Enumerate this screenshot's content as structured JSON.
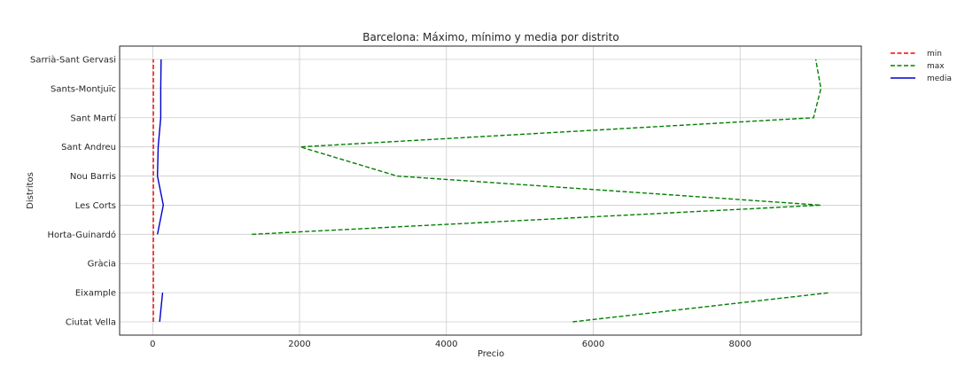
{
  "chart_data": {
    "type": "line",
    "title": "Barcelona: Máximo, mínimo y media por distrito",
    "xlabel": "Precio",
    "ylabel": "Distritos",
    "xlim": [
      -450,
      9650
    ],
    "xticks": [
      0,
      2000,
      4000,
      6000,
      8000
    ],
    "categories": [
      "Ciutat Vella",
      "Eixample",
      "Gràcia",
      "Horta-Guinardó",
      "Les Corts",
      "Nou Barris",
      "Sant Andreu",
      "Sant Martí",
      "Sants-Montjuïc",
      "Sarrià-Sant Gervasi"
    ],
    "grid": true,
    "legend_position": "outside-top-right",
    "series": [
      {
        "name": "min",
        "color": "#ff0000",
        "style": "dashed",
        "values": [
          10,
          10,
          10,
          10,
          10,
          10,
          10,
          10,
          10,
          10
        ]
      },
      {
        "name": "max",
        "color": "#008000",
        "style": "dashed",
        "values": [
          5720,
          9220,
          null,
          1350,
          9100,
          3330,
          2010,
          9000,
          9100,
          9030
        ]
      },
      {
        "name": "media",
        "color": "#0000cc",
        "style": "solid",
        "values": [
          95,
          135,
          null,
          65,
          145,
          65,
          75,
          110,
          110,
          115
        ]
      }
    ]
  }
}
